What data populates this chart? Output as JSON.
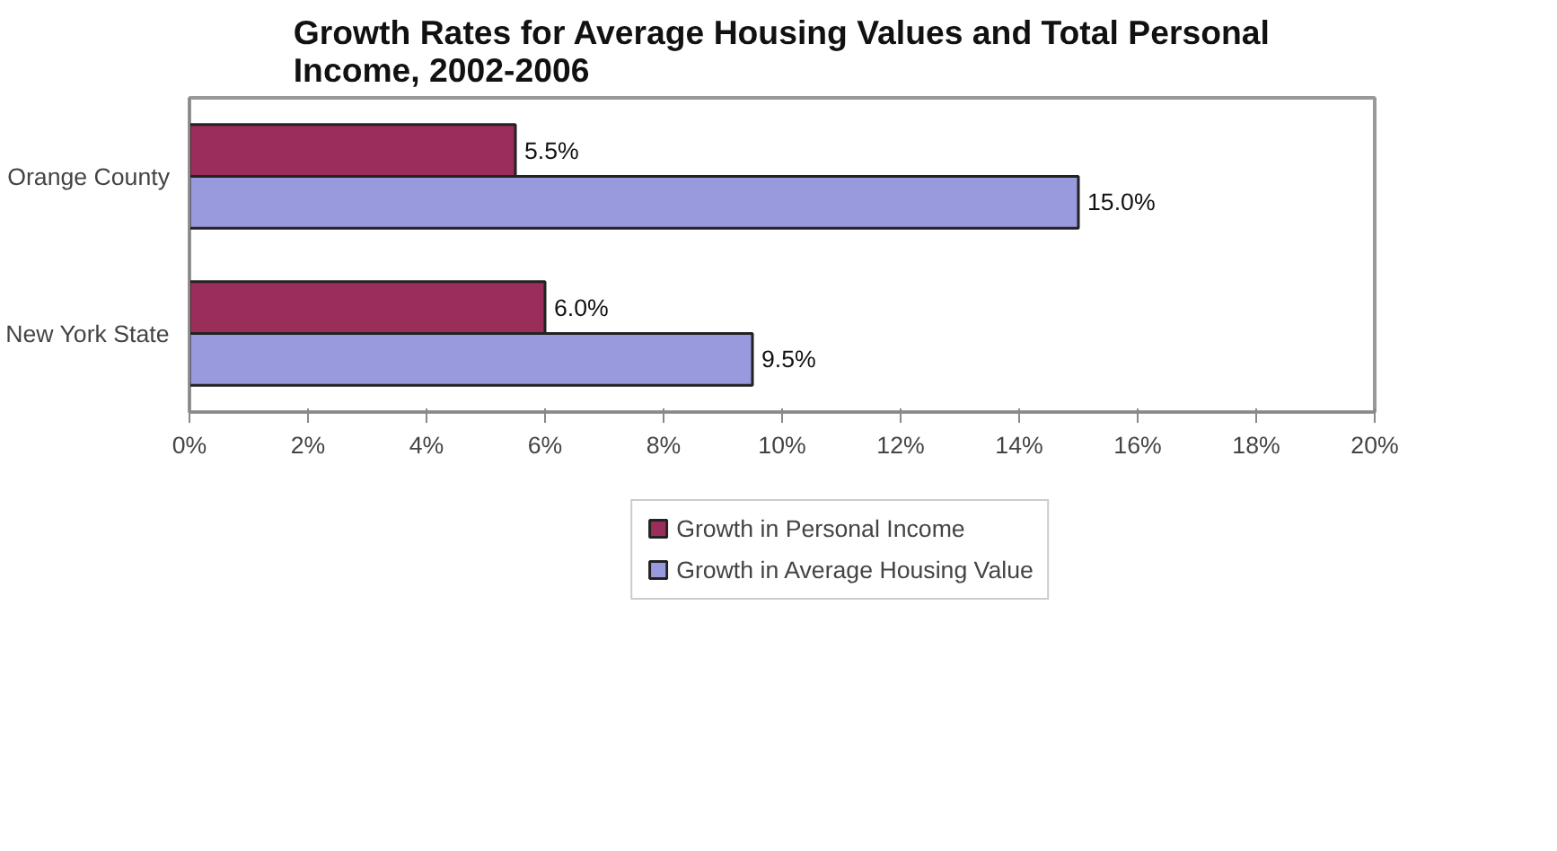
{
  "chart_data": {
    "type": "bar",
    "orientation": "horizontal",
    "title": "Growth Rates for Average Housing Values and Total Personal Income, 2002-2006",
    "categories": [
      "Orange County",
      "New York State"
    ],
    "series": [
      {
        "name": "Growth in Personal Income",
        "color": "#9b2d5b",
        "values": [
          5.5,
          6.0
        ],
        "value_labels": [
          "5.5%",
          "6.0%"
        ]
      },
      {
        "name": "Growth in Average Housing Value",
        "color": "#9999dd",
        "values": [
          15.0,
          9.5
        ],
        "value_labels": [
          "15.0%",
          "9.5%"
        ]
      }
    ],
    "xlim": [
      0,
      20
    ],
    "xticks": [
      {
        "value": 0,
        "label": "0%"
      },
      {
        "value": 2,
        "label": "2%"
      },
      {
        "value": 4,
        "label": "4%"
      },
      {
        "value": 6,
        "label": "6%"
      },
      {
        "value": 8,
        "label": "8%"
      },
      {
        "value": 10,
        "label": "10%"
      },
      {
        "value": 12,
        "label": "12%"
      },
      {
        "value": 14,
        "label": "14%"
      },
      {
        "value": 16,
        "label": "16%"
      },
      {
        "value": 18,
        "label": "18%"
      },
      {
        "value": 20,
        "label": "20%"
      }
    ],
    "grid": false,
    "legend": "bottom"
  }
}
